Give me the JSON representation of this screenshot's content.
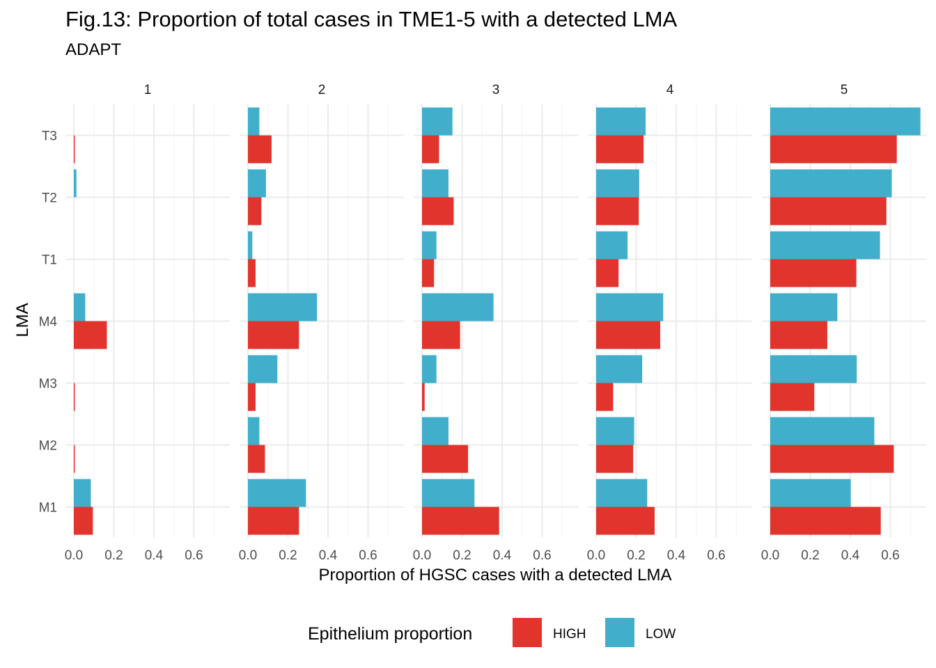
{
  "chart_data": {
    "type": "bar",
    "orientation": "horizontal",
    "facet": "grouped bars faceted by TME",
    "title": "Fig.13: Proportion of total cases in TME1-5 with a detected LMA",
    "subtitle": "ADAPT",
    "xlabel": "Proportion of HGSC cases with a detected LMA",
    "ylabel": "LMA",
    "xlim": [
      0,
      0.75
    ],
    "x_ticks": [
      0.0,
      0.2,
      0.4,
      0.6
    ],
    "x_tick_labels": [
      "0.0",
      "0.2",
      "0.4",
      "0.6"
    ],
    "categories": [
      "M1",
      "M2",
      "M3",
      "M4",
      "T1",
      "T2",
      "T3"
    ],
    "legend": {
      "title": "Epithelium proportion",
      "position": "bottom",
      "items": [
        {
          "label": "HIGH",
          "color": "#E0342C"
        },
        {
          "label": "LOW",
          "color": "#41AECB"
        }
      ]
    },
    "grid": true,
    "panels": [
      {
        "label": "1",
        "series": [
          {
            "name": "HIGH",
            "color": "#E0342C",
            "values": [
              0.095,
              0.005,
              0.005,
              0.165,
              0.0,
              0.0,
              0.005
            ]
          },
          {
            "name": "LOW",
            "color": "#41AECB",
            "values": [
              0.085,
              0.0,
              0.0,
              0.057,
              0.0,
              0.013,
              0.0
            ]
          }
        ]
      },
      {
        "label": "2",
        "series": [
          {
            "name": "HIGH",
            "color": "#E0342C",
            "values": [
              0.255,
              0.085,
              0.038,
              0.255,
              0.038,
              0.067,
              0.118
            ]
          },
          {
            "name": "LOW",
            "color": "#41AECB",
            "values": [
              0.29,
              0.057,
              0.147,
              0.345,
              0.022,
              0.09,
              0.057
            ]
          }
        ]
      },
      {
        "label": "3",
        "series": [
          {
            "name": "HIGH",
            "color": "#E0342C",
            "values": [
              0.385,
              0.23,
              0.013,
              0.19,
              0.06,
              0.158,
              0.085
            ]
          },
          {
            "name": "LOW",
            "color": "#41AECB",
            "values": [
              0.262,
              0.132,
              0.072,
              0.357,
              0.072,
              0.132,
              0.152
            ]
          }
        ]
      },
      {
        "label": "4",
        "series": [
          {
            "name": "HIGH",
            "color": "#E0342C",
            "values": [
              0.292,
              0.185,
              0.085,
              0.32,
              0.112,
              0.213,
              0.237
            ]
          },
          {
            "name": "LOW",
            "color": "#41AECB",
            "values": [
              0.255,
              0.19,
              0.23,
              0.335,
              0.157,
              0.215,
              0.247
            ]
          }
        ]
      },
      {
        "label": "5",
        "series": [
          {
            "name": "HIGH",
            "color": "#E0342C",
            "values": [
              0.552,
              0.617,
              0.22,
              0.285,
              0.43,
              0.58,
              0.632
            ]
          },
          {
            "name": "LOW",
            "color": "#41AECB",
            "values": [
              0.402,
              0.52,
              0.432,
              0.335,
              0.548,
              0.607,
              0.75
            ]
          }
        ]
      }
    ]
  }
}
